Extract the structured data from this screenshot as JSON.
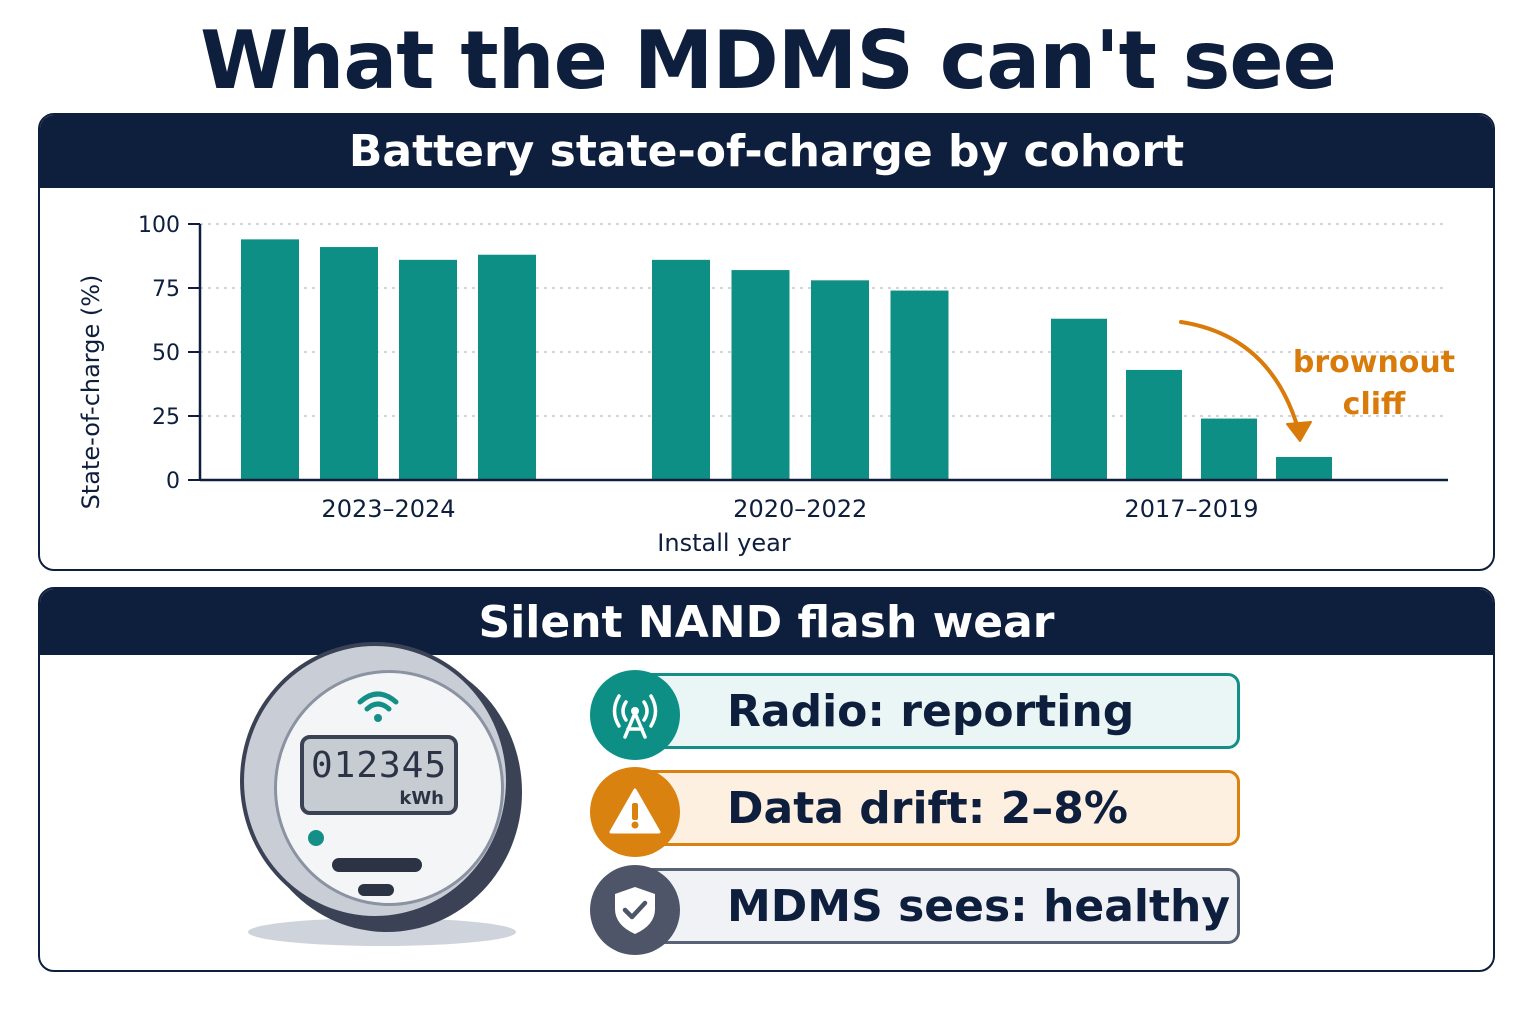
{
  "title": "What the MDMS can't see",
  "chart_panel": {
    "header": "Battery state-of-charge by cohort"
  },
  "chart_data": {
    "type": "bar",
    "title": "Battery state-of-charge by cohort",
    "xlabel": "Install year",
    "ylabel": "State-of-charge (%)",
    "ylim": [
      0,
      100
    ],
    "yticks": [
      0,
      25,
      50,
      75,
      100
    ],
    "grid": true,
    "bar_color": "#0e8f86",
    "groups": [
      {
        "label": "2023–2024",
        "values": [
          94,
          91,
          86,
          88
        ]
      },
      {
        "label": "2020–2022",
        "values": [
          86,
          82,
          78,
          74
        ]
      },
      {
        "label": "2017–2019",
        "values": [
          63,
          43,
          24,
          9
        ]
      }
    ],
    "annotation": {
      "text_line1": "brownout",
      "text_line2": "cliff",
      "color": "#d97b0a"
    }
  },
  "nand_panel": {
    "header": "Silent NAND flash wear",
    "meter": {
      "digits": "012345",
      "unit": "kWh"
    },
    "statuses": [
      {
        "label": "Radio: reporting",
        "icon": "radio-tower-icon",
        "color": "#0e8f86"
      },
      {
        "label": "Data drift: 2–8%",
        "icon": "warning-icon",
        "color": "#d9820f"
      },
      {
        "label": "MDMS sees: healthy",
        "icon": "shield-check-icon",
        "color": "#4e5568"
      }
    ]
  }
}
